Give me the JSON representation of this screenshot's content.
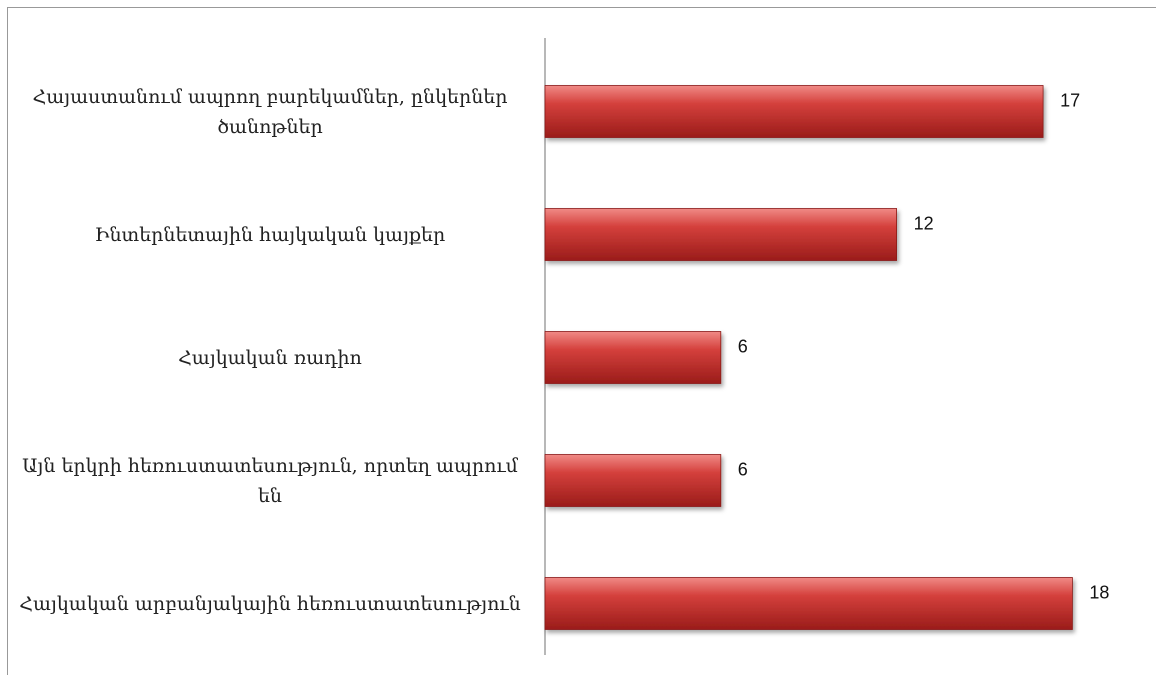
{
  "chart_data": {
    "type": "bar",
    "orientation": "horizontal",
    "categories": [
      "Հայաստանում ապրող բարեկամներ, ընկերներ ծանոթներ",
      "Ինտերնետային հայկական կայքեր",
      "Հայկական ռադիո",
      "Այն երկրի հեռուստատեսություն, որտեղ ապրում են",
      "Հայկական արբանյակային հեռուստատեսություն"
    ],
    "values": [
      17,
      12,
      6,
      6,
      18
    ],
    "color": "#c0302e"
  }
}
